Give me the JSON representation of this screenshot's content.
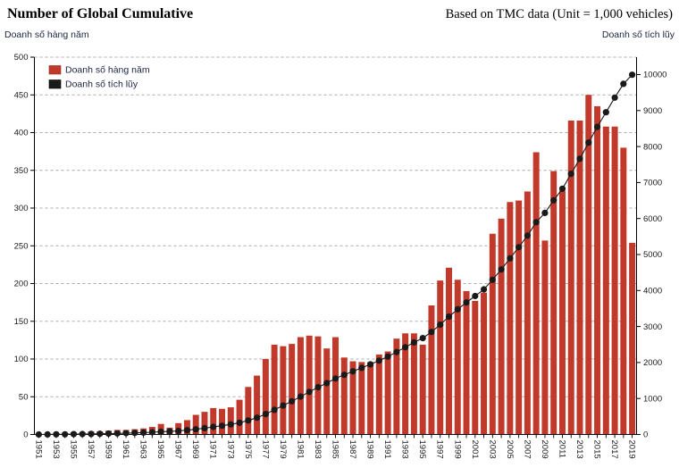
{
  "header": {
    "title": "Number of Global Cumulative",
    "note": "Based on TMC data (Unit = 1,000 vehicles)"
  },
  "axes": {
    "left_label": "Doanh số hàng năm",
    "right_label": "Doanh số tích lũy",
    "left_ticks": [
      0,
      50,
      100,
      150,
      200,
      250,
      300,
      350,
      400,
      450,
      500
    ],
    "right_ticks": [
      0,
      1000,
      2000,
      3000,
      4000,
      5000,
      6000,
      7000,
      8000,
      9000,
      10000
    ]
  },
  "legend": [
    {
      "label": "Doanh số hàng năm",
      "color": "#c0392b"
    },
    {
      "label": "Doanh số tích lũy",
      "color": "#1a1a1a"
    }
  ],
  "chart_data": {
    "type": "bar",
    "title": "Number of Global Cumulative",
    "subtitle": "Based on TMC data (Unit = 1,000 vehicles)",
    "xlabel": "",
    "ylabel_left": "Doanh số hàng năm",
    "ylabel_right": "Doanh số tích lũy",
    "left_ylim": [
      0,
      500
    ],
    "right_ylim": [
      0,
      10000
    ],
    "grid": "horizontal-dashed",
    "legend_position": "top-left-inside",
    "x_tick_label_step": 2,
    "x": [
      1951,
      1952,
      1953,
      1954,
      1955,
      1956,
      1957,
      1958,
      1959,
      1960,
      1961,
      1962,
      1963,
      1964,
      1965,
      1966,
      1967,
      1968,
      1969,
      1970,
      1971,
      1972,
      1973,
      1974,
      1975,
      1976,
      1977,
      1978,
      1979,
      1980,
      1981,
      1982,
      1983,
      1984,
      1985,
      1986,
      1987,
      1988,
      1989,
      1990,
      1991,
      1992,
      1993,
      1994,
      1995,
      1996,
      1997,
      1998,
      1999,
      2000,
      2001,
      2002,
      2003,
      2004,
      2005,
      2006,
      2007,
      2008,
      2009,
      2010,
      2011,
      2012,
      2013,
      2014,
      2015,
      2016,
      2017,
      2018,
      2019
    ],
    "series": [
      {
        "name": "Doanh số hàng năm",
        "type": "bar",
        "axis": "left",
        "color": "#c0392b",
        "values": [
          1,
          1,
          2,
          2,
          3,
          3,
          4,
          4,
          5,
          6,
          6,
          7,
          8,
          10,
          14,
          9,
          15,
          19,
          26,
          30,
          35,
          34,
          36,
          46,
          63,
          78,
          100,
          119,
          117,
          120,
          129,
          131,
          130,
          114,
          129,
          102,
          97,
          96,
          96,
          106,
          110,
          127,
          134,
          134,
          119,
          171,
          204,
          221,
          205,
          190,
          177,
          188,
          266,
          286,
          308,
          310,
          322,
          374,
          257,
          349,
          323,
          416,
          416,
          450,
          435,
          408,
          408,
          380,
          254
        ]
      },
      {
        "name": "Doanh số tích lũy",
        "type": "line-marker",
        "axis": "right",
        "color": "#1a1a1a",
        "values": [
          1,
          2,
          4,
          6,
          9,
          12,
          16,
          20,
          25,
          31,
          37,
          44,
          52,
          62,
          76,
          85,
          100,
          119,
          145,
          175,
          210,
          244,
          280,
          326,
          389,
          467,
          567,
          686,
          803,
          923,
          1052,
          1183,
          1313,
          1427,
          1556,
          1658,
          1755,
          1851,
          1947,
          2053,
          2163,
          2290,
          2424,
          2558,
          2677,
          2848,
          3052,
          3273,
          3478,
          3668,
          3845,
          4033,
          4299,
          4585,
          4893,
          5203,
          5525,
          5899,
          6156,
          6505,
          6828,
          7244,
          7660,
          8110,
          8545,
          8953,
          9361,
          9741,
          9995
        ]
      }
    ]
  }
}
